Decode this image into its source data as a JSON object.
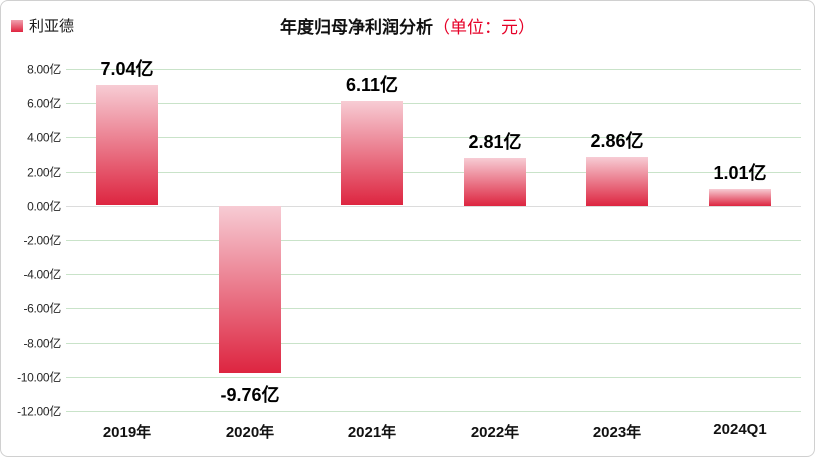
{
  "legend": {
    "label": "利亚德",
    "marker_color_top": "#f0a2b0",
    "marker_color_bottom": "#e02440"
  },
  "title": {
    "main": "年度归母净利润分析",
    "unit": "（单位：元）",
    "unit_color": "#e60027"
  },
  "chart_data": {
    "type": "bar",
    "title": "年度归母净利润分析（单位：元）",
    "series_name": "利亚德",
    "categories": [
      "2019年",
      "2020年",
      "2021年",
      "2022年",
      "2023年",
      "2024Q1"
    ],
    "values": [
      7.04,
      -9.76,
      6.11,
      2.81,
      2.86,
      1.01
    ],
    "data_labels": [
      "7.04亿",
      "-9.76亿",
      "6.11亿",
      "2.81亿",
      "2.86亿",
      "1.01亿"
    ],
    "unit": "亿",
    "ylim": [
      -12,
      8
    ],
    "y_tick_values": [
      8,
      6,
      4,
      2,
      0,
      -2,
      -4,
      -6,
      -8,
      -10,
      -12
    ],
    "y_tick_labels": [
      "8.00亿",
      "6.00亿",
      "4.00亿",
      "2.00亿",
      "0.00亿",
      "-2.00亿",
      "-4.00亿",
      "-6.00亿",
      "-8.00亿",
      "-10.00亿",
      "-12.00亿"
    ],
    "grid": true,
    "legend_position": "top-left",
    "colors": {
      "bar_gradient_top": "#f7ccd4",
      "bar_gradient_bottom": "#dd2540",
      "gridline": "#c9e3c9",
      "zero_line": "#dcdcdc",
      "label_text": "#000000"
    }
  }
}
